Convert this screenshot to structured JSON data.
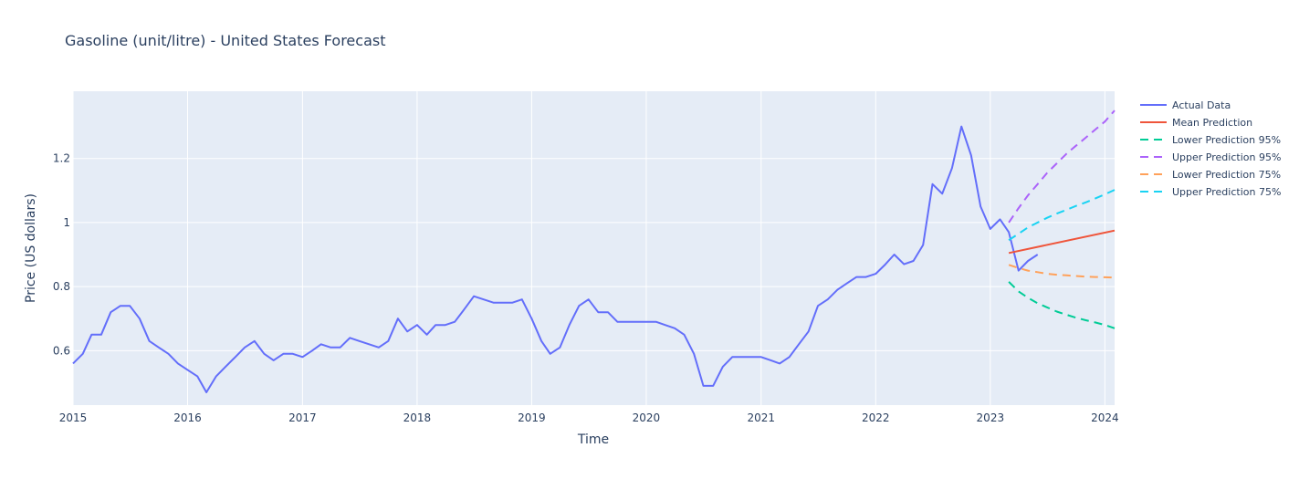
{
  "chart_data": {
    "type": "line",
    "title": "Gasoline (unit/litre) - United States Forecast",
    "xlabel": "Time",
    "ylabel": "Price (US dollars)",
    "xlim": [
      "2015-01-01",
      "2024-02-01"
    ],
    "ylim": [
      0.43,
      1.41
    ],
    "x_ticks": [
      "2015",
      "2016",
      "2017",
      "2018",
      "2019",
      "2020",
      "2021",
      "2022",
      "2023",
      "2024"
    ],
    "y_ticks": [
      0.6,
      0.8,
      1,
      1.2
    ],
    "y_tick_labels": [
      "0.6",
      "0.8",
      "1",
      "1.2"
    ],
    "grid": true,
    "legend_position": "right",
    "background": "#e5ecf6",
    "series": [
      {
        "name": "Actual Data",
        "color": "#636efa",
        "dash": "solid",
        "points": [
          [
            "2015-01-01",
            0.56
          ],
          [
            "2015-02-01",
            0.59
          ],
          [
            "2015-03-01",
            0.65
          ],
          [
            "2015-04-01",
            0.65
          ],
          [
            "2015-05-01",
            0.72
          ],
          [
            "2015-06-01",
            0.74
          ],
          [
            "2015-07-01",
            0.74
          ],
          [
            "2015-08-01",
            0.7
          ],
          [
            "2015-09-01",
            0.63
          ],
          [
            "2015-10-01",
            0.61
          ],
          [
            "2015-11-01",
            0.59
          ],
          [
            "2015-12-01",
            0.56
          ],
          [
            "2016-01-01",
            0.54
          ],
          [
            "2016-02-01",
            0.52
          ],
          [
            "2016-03-01",
            0.47
          ],
          [
            "2016-04-01",
            0.52
          ],
          [
            "2016-05-01",
            0.55
          ],
          [
            "2016-06-01",
            0.58
          ],
          [
            "2016-07-01",
            0.61
          ],
          [
            "2016-08-01",
            0.63
          ],
          [
            "2016-09-01",
            0.59
          ],
          [
            "2016-10-01",
            0.57
          ],
          [
            "2016-11-01",
            0.59
          ],
          [
            "2016-12-01",
            0.59
          ],
          [
            "2017-01-01",
            0.58
          ],
          [
            "2017-02-01",
            0.6
          ],
          [
            "2017-03-01",
            0.62
          ],
          [
            "2017-04-01",
            0.61
          ],
          [
            "2017-05-01",
            0.61
          ],
          [
            "2017-06-01",
            0.64
          ],
          [
            "2017-07-01",
            0.63
          ],
          [
            "2017-08-01",
            0.62
          ],
          [
            "2017-09-01",
            0.61
          ],
          [
            "2017-10-01",
            0.63
          ],
          [
            "2017-11-01",
            0.7
          ],
          [
            "2017-12-01",
            0.66
          ],
          [
            "2018-01-01",
            0.68
          ],
          [
            "2018-02-01",
            0.65
          ],
          [
            "2018-03-01",
            0.68
          ],
          [
            "2018-04-01",
            0.68
          ],
          [
            "2018-05-01",
            0.69
          ],
          [
            "2018-06-01",
            0.73
          ],
          [
            "2018-07-01",
            0.77
          ],
          [
            "2018-08-01",
            0.76
          ],
          [
            "2018-09-01",
            0.75
          ],
          [
            "2018-10-01",
            0.75
          ],
          [
            "2018-11-01",
            0.75
          ],
          [
            "2018-12-01",
            0.76
          ],
          [
            "2019-01-01",
            0.7
          ],
          [
            "2019-02-01",
            0.63
          ],
          [
            "2019-03-01",
            0.59
          ],
          [
            "2019-04-01",
            0.61
          ],
          [
            "2019-05-01",
            0.68
          ],
          [
            "2019-06-01",
            0.74
          ],
          [
            "2019-07-01",
            0.76
          ],
          [
            "2019-08-01",
            0.72
          ],
          [
            "2019-09-01",
            0.72
          ],
          [
            "2019-10-01",
            0.69
          ],
          [
            "2019-11-01",
            0.69
          ],
          [
            "2019-12-01",
            0.69
          ],
          [
            "2020-01-01",
            0.69
          ],
          [
            "2020-02-01",
            0.69
          ],
          [
            "2020-03-01",
            0.68
          ],
          [
            "2020-04-01",
            0.67
          ],
          [
            "2020-05-01",
            0.65
          ],
          [
            "2020-06-01",
            0.59
          ],
          [
            "2020-07-01",
            0.49
          ],
          [
            "2020-08-01",
            0.49
          ],
          [
            "2020-09-01",
            0.55
          ],
          [
            "2020-10-01",
            0.58
          ],
          [
            "2020-11-01",
            0.58
          ],
          [
            "2020-12-01",
            0.58
          ],
          [
            "2021-01-01",
            0.58
          ],
          [
            "2021-02-01",
            0.57
          ],
          [
            "2021-03-01",
            0.56
          ],
          [
            "2021-04-01",
            0.58
          ],
          [
            "2021-05-01",
            0.62
          ],
          [
            "2021-06-01",
            0.66
          ],
          [
            "2021-07-01",
            0.74
          ],
          [
            "2021-08-01",
            0.76
          ],
          [
            "2021-09-01",
            0.79
          ],
          [
            "2021-10-01",
            0.81
          ],
          [
            "2021-11-01",
            0.83
          ],
          [
            "2021-12-01",
            0.83
          ],
          [
            "2022-01-01",
            0.84
          ],
          [
            "2022-02-01",
            0.87
          ],
          [
            "2022-03-01",
            0.9
          ],
          [
            "2022-04-01",
            0.87
          ],
          [
            "2022-05-01",
            0.88
          ],
          [
            "2022-06-01",
            0.93
          ],
          [
            "2022-07-01",
            1.12
          ],
          [
            "2022-08-01",
            1.09
          ],
          [
            "2022-09-01",
            1.17
          ],
          [
            "2022-10-01",
            1.3
          ],
          [
            "2022-11-01",
            1.21
          ],
          [
            "2022-12-01",
            1.05
          ],
          [
            "2023-01-01",
            0.98
          ],
          [
            "2023-02-01",
            1.01
          ],
          [
            "2023-03-01",
            0.97
          ],
          [
            "2023-04-01",
            0.85
          ],
          [
            "2023-05-01",
            0.88
          ],
          [
            "2023-06-01",
            0.9
          ]
        ]
      },
      {
        "name": "Mean Prediction",
        "color": "#ef553b",
        "dash": "solid",
        "points": [
          [
            "2023-03-01",
            0.905
          ],
          [
            "2024-02-01",
            0.975
          ]
        ]
      },
      {
        "name": "Lower Prediction 95%",
        "color": "#00cc96",
        "dash": "dash",
        "points": [
          [
            "2023-03-01",
            0.815
          ],
          [
            "2023-04-01",
            0.785
          ],
          [
            "2023-05-01",
            0.765
          ],
          [
            "2023-06-01",
            0.748
          ],
          [
            "2023-07-01",
            0.735
          ],
          [
            "2023-08-01",
            0.722
          ],
          [
            "2023-09-01",
            0.712
          ],
          [
            "2023-10-01",
            0.703
          ],
          [
            "2023-11-01",
            0.695
          ],
          [
            "2023-12-01",
            0.688
          ],
          [
            "2024-01-01",
            0.68
          ],
          [
            "2024-02-01",
            0.67
          ]
        ]
      },
      {
        "name": "Upper Prediction 95%",
        "color": "#ab63fa",
        "dash": "dash",
        "points": [
          [
            "2023-03-01",
            1.0
          ],
          [
            "2023-04-01",
            1.045
          ],
          [
            "2023-05-01",
            1.085
          ],
          [
            "2023-06-01",
            1.12
          ],
          [
            "2023-07-01",
            1.155
          ],
          [
            "2023-08-01",
            1.185
          ],
          [
            "2023-09-01",
            1.215
          ],
          [
            "2023-10-01",
            1.24
          ],
          [
            "2023-11-01",
            1.265
          ],
          [
            "2023-12-01",
            1.29
          ],
          [
            "2024-01-01",
            1.315
          ],
          [
            "2024-02-01",
            1.35
          ]
        ]
      },
      {
        "name": "Lower Prediction 75%",
        "color": "#ffa15a",
        "dash": "dash",
        "points": [
          [
            "2023-03-01",
            0.868
          ],
          [
            "2023-04-01",
            0.858
          ],
          [
            "2023-05-01",
            0.85
          ],
          [
            "2023-06-01",
            0.845
          ],
          [
            "2023-07-01",
            0.84
          ],
          [
            "2023-08-01",
            0.837
          ],
          [
            "2023-09-01",
            0.835
          ],
          [
            "2023-10-01",
            0.833
          ],
          [
            "2023-11-01",
            0.831
          ],
          [
            "2023-12-01",
            0.83
          ],
          [
            "2024-01-01",
            0.829
          ],
          [
            "2024-02-01",
            0.828
          ]
        ]
      },
      {
        "name": "Upper Prediction 75%",
        "color": "#19d3f3",
        "dash": "dash",
        "points": [
          [
            "2023-03-01",
            0.945
          ],
          [
            "2023-04-01",
            0.965
          ],
          [
            "2023-05-01",
            0.985
          ],
          [
            "2023-06-01",
            1.0
          ],
          [
            "2023-07-01",
            1.015
          ],
          [
            "2023-08-01",
            1.028
          ],
          [
            "2023-09-01",
            1.04
          ],
          [
            "2023-10-01",
            1.052
          ],
          [
            "2023-11-01",
            1.063
          ],
          [
            "2023-12-01",
            1.075
          ],
          [
            "2024-01-01",
            1.088
          ],
          [
            "2024-02-01",
            1.102
          ]
        ]
      }
    ]
  }
}
